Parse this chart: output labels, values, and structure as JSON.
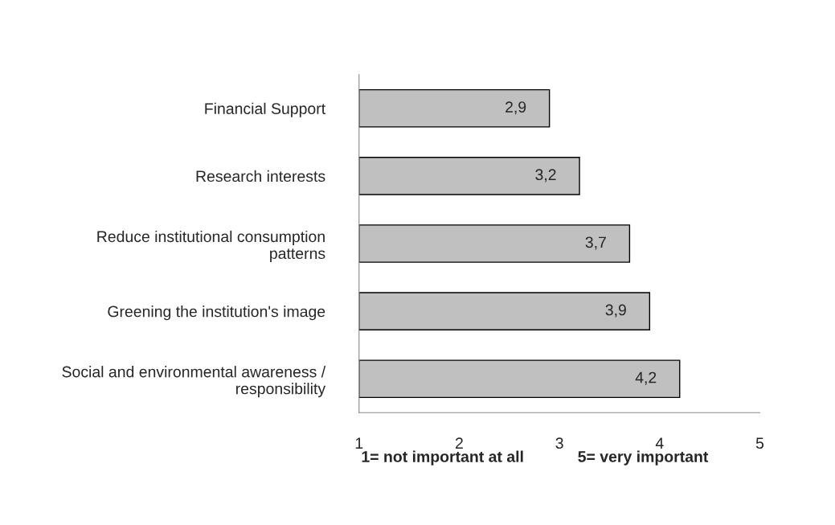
{
  "chart_data": {
    "type": "bar",
    "orientation": "horizontal",
    "categories": [
      "Financial Support",
      "Research interests",
      "Reduce institutional consumption\npatterns",
      "Greening the institution's image",
      "Social and environmental awareness /\nresponsibility"
    ],
    "values": [
      2.9,
      3.2,
      3.7,
      3.9,
      4.2
    ],
    "value_labels": [
      "2,9",
      "3,2",
      "3,7",
      "3,9",
      "4,2"
    ],
    "color": "#c0c0c0",
    "xlim": [
      1,
      5
    ],
    "xticks": [
      1,
      2,
      3,
      4,
      5
    ],
    "grid": false,
    "legend": false,
    "annotations": [
      "1= not important at all",
      "5= very important"
    ]
  }
}
